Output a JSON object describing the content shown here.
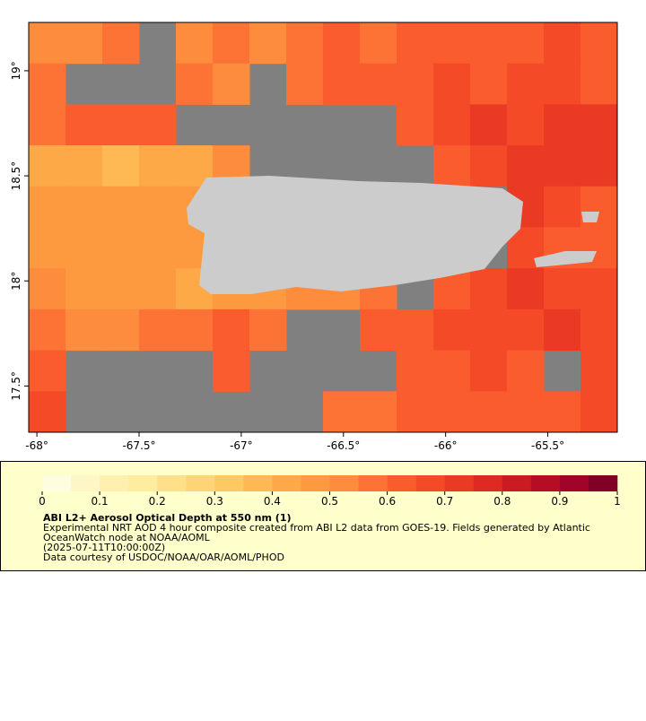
{
  "map": {
    "type": "raster",
    "xlim": [
      -68.04,
      -65.16
    ],
    "ylim": [
      17.28,
      19.23
    ],
    "xticks": [
      {
        "value": -68,
        "label": "-68°"
      },
      {
        "value": -67.5,
        "label": "-67.5°"
      },
      {
        "value": -67,
        "label": "-67°"
      },
      {
        "value": -66.5,
        "label": "-66.5°"
      },
      {
        "value": -66,
        "label": "-66°"
      },
      {
        "value": -65.5,
        "label": "-65.5°"
      }
    ],
    "yticks": [
      {
        "value": 17.5,
        "label": "17.5°"
      },
      {
        "value": 18,
        "label": "18°"
      },
      {
        "value": 18.5,
        "label": "18.5°"
      },
      {
        "value": 19,
        "label": "19°"
      }
    ],
    "grid_values": [
      [
        0.5,
        0.5,
        0.55,
        null,
        0.5,
        0.55,
        0.5,
        0.55,
        0.6,
        0.55,
        0.6,
        0.6,
        0.6,
        0.6,
        0.65,
        0.6
      ],
      [
        0.55,
        null,
        null,
        null,
        0.55,
        0.5,
        null,
        0.55,
        0.6,
        0.6,
        0.6,
        0.65,
        0.6,
        0.65,
        0.65,
        0.6
      ],
      [
        0.55,
        0.6,
        0.6,
        0.6,
        null,
        null,
        null,
        null,
        null,
        null,
        0.6,
        0.65,
        0.7,
        0.65,
        0.7,
        0.7
      ],
      [
        0.4,
        0.4,
        0.35,
        0.4,
        0.4,
        0.5,
        null,
        null,
        null,
        null,
        null,
        0.6,
        0.65,
        0.7,
        0.7,
        0.7
      ],
      [
        0.45,
        0.45,
        0.45,
        0.45,
        0.45,
        null,
        null,
        null,
        null,
        null,
        null,
        null,
        null,
        0.7,
        0.65,
        0.6
      ],
      [
        0.45,
        0.45,
        0.45,
        0.45,
        0.45,
        null,
        null,
        null,
        null,
        null,
        null,
        null,
        null,
        0.65,
        0.6,
        0.6
      ],
      [
        0.5,
        0.45,
        0.45,
        0.45,
        0.4,
        0.45,
        0.45,
        0.5,
        0.5,
        0.55,
        null,
        0.6,
        0.65,
        0.7,
        0.65,
        0.65
      ],
      [
        0.55,
        0.5,
        0.5,
        0.55,
        0.55,
        0.6,
        0.55,
        null,
        null,
        0.6,
        0.6,
        0.65,
        0.65,
        0.65,
        0.7,
        0.65
      ],
      [
        0.6,
        null,
        null,
        null,
        null,
        0.6,
        null,
        null,
        null,
        null,
        0.6,
        0.6,
        0.65,
        0.6,
        null,
        0.65
      ],
      [
        0.65,
        null,
        null,
        null,
        null,
        null,
        null,
        null,
        0.55,
        0.55,
        0.6,
        0.6,
        0.6,
        0.6,
        0.6,
        0.65
      ]
    ],
    "no_data_color": "#808080",
    "land_color": "#cccccc",
    "colorbar": {
      "lim": [
        0,
        1
      ],
      "ticks": [
        0,
        0.1,
        0.2,
        0.3,
        0.4,
        0.5,
        0.6,
        0.7,
        0.8,
        0.9,
        1
      ],
      "colors": [
        "#fffde0",
        "#fff6c8",
        "#fff0b0",
        "#feec9f",
        "#fee08b",
        "#fed576",
        "#fec863",
        "#feb954",
        "#fea948",
        "#fd9a40",
        "#fd8c3c",
        "#fc7335",
        "#fb5c2e",
        "#f44a28",
        "#ea3a24",
        "#de2a22",
        "#cc1a22",
        "#b80c26",
        "#a00428",
        "#800026"
      ]
    }
  },
  "legend": {
    "title": "ABI L2+ Aerosol Optical Depth at 550 nm (1)",
    "lines": [
      "Experimental NRT AOD 4 hour composite created from ABI L2 data from GOES-19. Fields generated by Atlantic",
      "OceanWatch node at NOAA/AOML",
      "(2025-07-11T10:00:00Z)",
      "Data courtesy of USDOC/NOAA/OAR/AOML/PHOD"
    ]
  }
}
